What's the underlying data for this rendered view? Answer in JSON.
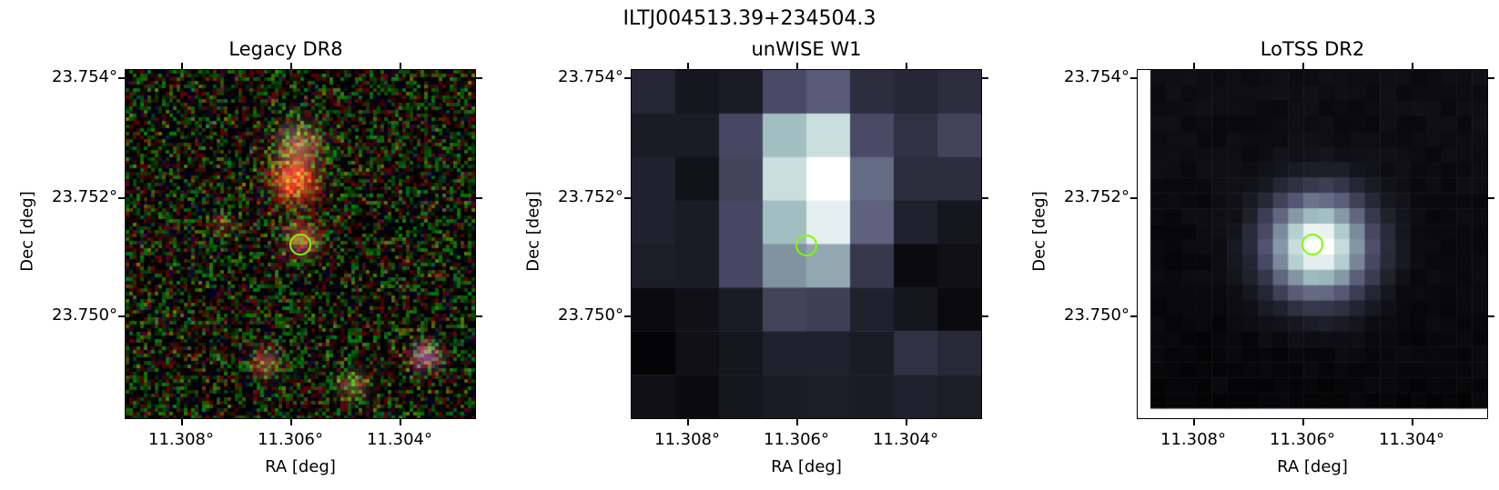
{
  "figure": {
    "title": "ILTJ004513.39+234504.3",
    "marker_color": "#7CFC00"
  },
  "panels": [
    {
      "title": "Legacy DR8",
      "xlabel": "RA [deg]",
      "ylabel": "Dec [deg]",
      "xticks": [
        "11.308°",
        "11.306°",
        "11.304°"
      ],
      "yticks": [
        "23.754°",
        "23.752°",
        "23.750°"
      ],
      "image": "rgb-noise-with-red-sources"
    },
    {
      "title": "unWISE W1",
      "xlabel": "RA [deg]",
      "ylabel": "Dec [deg]",
      "xticks": [
        "11.308°",
        "11.306°",
        "11.304°"
      ],
      "yticks": [
        "23.754°",
        "23.752°",
        "23.750°"
      ],
      "image": "bone-colormap-coarse-pixels",
      "pixels": [
        [
          0.17,
          0.1,
          0.12,
          0.33,
          0.4,
          0.2,
          0.17,
          0.2
        ],
        [
          0.12,
          0.12,
          0.32,
          0.72,
          0.85,
          0.33,
          0.22,
          0.3
        ],
        [
          0.15,
          0.08,
          0.3,
          0.85,
          1.0,
          0.45,
          0.2,
          0.2
        ],
        [
          0.15,
          0.12,
          0.32,
          0.72,
          0.93,
          0.42,
          0.15,
          0.1
        ],
        [
          0.13,
          0.12,
          0.32,
          0.58,
          0.65,
          0.25,
          0.05,
          0.07
        ],
        [
          0.05,
          0.07,
          0.12,
          0.3,
          0.28,
          0.15,
          0.1,
          0.05
        ],
        [
          0.02,
          0.07,
          0.1,
          0.15,
          0.15,
          0.12,
          0.22,
          0.18
        ],
        [
          0.07,
          0.05,
          0.1,
          0.12,
          0.13,
          0.12,
          0.15,
          0.13
        ]
      ]
    },
    {
      "title": "LoTSS DR2",
      "xlabel": "RA [deg]",
      "ylabel": "Dec [deg]",
      "xticks": [
        "11.308°",
        "11.306°",
        "11.304°"
      ],
      "yticks": [
        "23.754°",
        "23.752°",
        "23.750°"
      ],
      "image": "bone-colormap-gaussian-source"
    }
  ]
}
